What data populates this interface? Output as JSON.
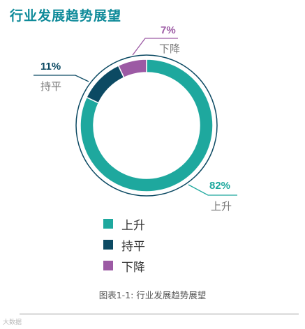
{
  "page_title": "行业发展趋势展望",
  "caption": "图表1-1: 行业发展趋势展望",
  "watermark": "大数据",
  "chart_data": {
    "type": "pie",
    "categories": [
      "上升",
      "持平",
      "下降"
    ],
    "values": [
      82,
      11,
      7
    ],
    "value_labels": [
      "82%",
      "11%",
      "7%"
    ],
    "colors": [
      "#1ea89e",
      "#0c4a63",
      "#9c5aa4"
    ],
    "legend_placement": "bottom-center"
  }
}
